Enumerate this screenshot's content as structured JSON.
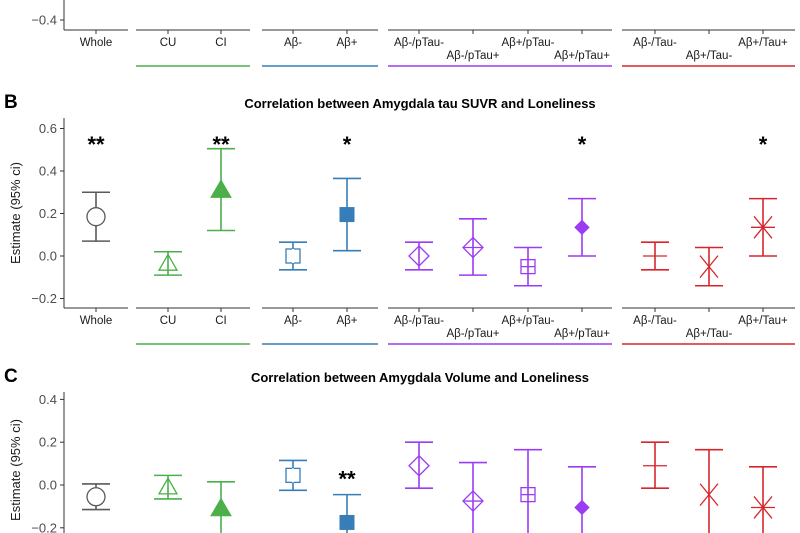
{
  "colors": {
    "whole": "#5a5a5a",
    "cognition": "#4daf4a",
    "amyloid": "#377eb8",
    "ptau": "#9b3cf2",
    "tau": "#d7262b"
  },
  "categories": [
    "Whole",
    "CU",
    "CI",
    "Aβ-",
    "Aβ+",
    "Aβ-/pTau-",
    "Aβ-/pTau+",
    "Aβ+/pTau-",
    "Aβ+/pTau+",
    "Aβ-/Tau-",
    "Aβ+/Tau-",
    "Aβ+/Tau+"
  ],
  "groups": [
    {
      "members": [
        0
      ],
      "color": "whole",
      "underline": false
    },
    {
      "members": [
        1,
        2
      ],
      "color": "cognition",
      "underline": true
    },
    {
      "members": [
        3,
        4
      ],
      "color": "amyloid",
      "underline": true
    },
    {
      "members": [
        5,
        6,
        7,
        8
      ],
      "color": "ptau",
      "underline": true
    },
    {
      "members": [
        9,
        10,
        11
      ],
      "color": "tau",
      "underline": true
    }
  ],
  "markers": [
    "open-circle",
    "open-triangle",
    "filled-triangle",
    "open-square",
    "filled-square",
    "open-diamond",
    "diamond-plus",
    "square-plus",
    "filled-diamond",
    "minus",
    "x-cross",
    "asterisk"
  ],
  "chart_data": [
    {
      "panel": "",
      "type": "scatter-errorbar",
      "title": "",
      "ylabel": "",
      "yticks": [
        -0.4
      ],
      "ylim_visible": [
        -0.45,
        -0.36
      ],
      "note": "partially visible panel (bottom edge only)",
      "points": []
    },
    {
      "panel": "B",
      "type": "scatter-errorbar",
      "title": "Correlation between Amygdala tau SUVR and Loneliness",
      "ylabel": "Estimate (95% ci)",
      "yticks": [
        -0.2,
        0.0,
        0.2,
        0.4,
        0.6
      ],
      "ylim": [
        -0.24,
        0.63
      ],
      "points": [
        {
          "category": "Whole",
          "estimate": 0.185,
          "lower": 0.07,
          "upper": 0.3,
          "sig": "**"
        },
        {
          "category": "CU",
          "estimate": -0.035,
          "lower": -0.09,
          "upper": 0.02,
          "sig": ""
        },
        {
          "category": "CI",
          "estimate": 0.31,
          "lower": 0.12,
          "upper": 0.505,
          "sig": "**"
        },
        {
          "category": "Aβ-",
          "estimate": 0.0,
          "lower": -0.065,
          "upper": 0.065,
          "sig": ""
        },
        {
          "category": "Aβ+",
          "estimate": 0.195,
          "lower": 0.025,
          "upper": 0.365,
          "sig": "*"
        },
        {
          "category": "Aβ-/pTau-",
          "estimate": 0.0,
          "lower": -0.065,
          "upper": 0.065,
          "sig": ""
        },
        {
          "category": "Aβ-/pTau+",
          "estimate": 0.04,
          "lower": -0.09,
          "upper": 0.175,
          "sig": ""
        },
        {
          "category": "Aβ+/pTau-",
          "estimate": -0.05,
          "lower": -0.14,
          "upper": 0.04,
          "sig": ""
        },
        {
          "category": "Aβ+/pTau+",
          "estimate": 0.135,
          "lower": 0.0,
          "upper": 0.27,
          "sig": "*"
        },
        {
          "category": "Aβ-/Tau-",
          "estimate": 0.0,
          "lower": -0.065,
          "upper": 0.065,
          "sig": ""
        },
        {
          "category": "Aβ+/Tau-",
          "estimate": -0.05,
          "lower": -0.14,
          "upper": 0.04,
          "sig": ""
        },
        {
          "category": "Aβ+/Tau+",
          "estimate": 0.135,
          "lower": 0.0,
          "upper": 0.27,
          "sig": "*"
        }
      ]
    },
    {
      "panel": "C",
      "type": "scatter-errorbar",
      "title": "Correlation between Amygdala Volume and Loneliness",
      "ylabel": "Estimate (95% ci)",
      "yticks": [
        -0.2,
        0.0,
        0.2,
        0.4
      ],
      "ylim_visible": [
        -0.25,
        0.43
      ],
      "points": [
        {
          "category": "Whole",
          "estimate": -0.055,
          "lower": -0.115,
          "upper": 0.005,
          "sig": ""
        },
        {
          "category": "CU",
          "estimate": -0.01,
          "lower": -0.065,
          "upper": 0.045,
          "sig": ""
        },
        {
          "category": "CI",
          "estimate": -0.11,
          "lower": null,
          "upper": 0.015,
          "sig": ""
        },
        {
          "category": "Aβ-",
          "estimate": 0.045,
          "lower": -0.025,
          "upper": 0.115,
          "sig": ""
        },
        {
          "category": "Aβ+",
          "estimate": -0.175,
          "lower": null,
          "upper": -0.045,
          "sig": "**"
        },
        {
          "category": "Aβ-/pTau-",
          "estimate": 0.09,
          "lower": -0.015,
          "upper": 0.2,
          "sig": ""
        },
        {
          "category": "Aβ-/pTau+",
          "estimate": -0.075,
          "lower": null,
          "upper": 0.105,
          "sig": ""
        },
        {
          "category": "Aβ+/pTau-",
          "estimate": -0.045,
          "lower": null,
          "upper": 0.165,
          "sig": ""
        },
        {
          "category": "Aβ+/pTau+",
          "estimate": -0.105,
          "lower": null,
          "upper": 0.085,
          "sig": ""
        },
        {
          "category": "Aβ-/Tau-",
          "estimate": 0.09,
          "lower": -0.015,
          "upper": 0.2,
          "sig": ""
        },
        {
          "category": "Aβ+/Tau-",
          "estimate": -0.045,
          "lower": null,
          "upper": 0.165,
          "sig": ""
        },
        {
          "category": "Aβ+/Tau+",
          "estimate": -0.105,
          "lower": null,
          "upper": 0.085,
          "sig": ""
        }
      ]
    }
  ]
}
